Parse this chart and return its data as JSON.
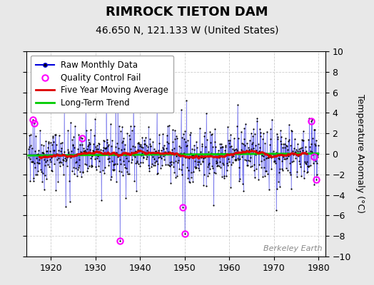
{
  "title": "RIMROCK TIETON DAM",
  "subtitle": "46.650 N, 121.133 W (United States)",
  "ylabel_right": "Temperature Anomaly (°C)",
  "watermark": "Berkeley Earth",
  "xlim": [
    1914.5,
    1981.5
  ],
  "ylim": [
    -10,
    10
  ],
  "xticks": [
    1920,
    1930,
    1940,
    1950,
    1960,
    1970,
    1980
  ],
  "yticks": [
    -10,
    -8,
    -6,
    -4,
    -2,
    0,
    2,
    4,
    6,
    8,
    10
  ],
  "fig_bg_color": "#e8e8e8",
  "plot_bg_color": "#ffffff",
  "raw_line_color": "#0000dd",
  "raw_dot_color": "#000000",
  "qc_fail_color": "#ff00ff",
  "moving_avg_color": "#dd0000",
  "trend_color": "#00cc00",
  "grid_color": "#cccccc",
  "legend_raw_label": "Raw Monthly Data",
  "legend_qc_label": "Quality Control Fail",
  "legend_ma_label": "Five Year Moving Average",
  "legend_trend_label": "Long-Term Trend",
  "start_year": 1915,
  "end_year": 1980,
  "seed": 42,
  "qc_fail_points": [
    [
      1916.0,
      3.3
    ],
    [
      1916.3,
      3.0
    ],
    [
      1927.0,
      1.5
    ],
    [
      1935.5,
      -8.5
    ],
    [
      1949.5,
      -5.2
    ],
    [
      1950.0,
      -7.8
    ],
    [
      1978.3,
      3.2
    ],
    [
      1979.0,
      -0.3
    ],
    [
      1979.5,
      -2.5
    ]
  ],
  "trend_slope": 0.003,
  "trend_intercept": -0.05,
  "title_fontsize": 13,
  "subtitle_fontsize": 10,
  "tick_fontsize": 9,
  "label_fontsize": 9,
  "legend_fontsize": 8.5,
  "watermark_fontsize": 8
}
